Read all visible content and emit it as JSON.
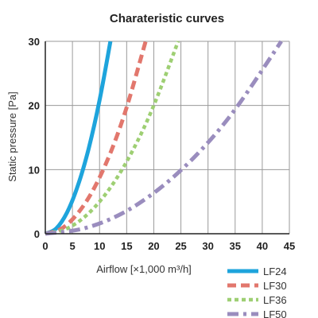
{
  "chart_data": {
    "type": "line",
    "title": "Charateristic curves",
    "xlabel": "Airflow [×1,000 m³/h]",
    "ylabel": "Static pressure  [Pa]",
    "xlim": [
      0,
      45
    ],
    "ylim": [
      0,
      30
    ],
    "x_ticks": [
      "0",
      "5",
      "10",
      "15",
      "20",
      "25",
      "30",
      "35",
      "40",
      "45"
    ],
    "y_ticks": [
      "0",
      "10",
      "20",
      "30"
    ],
    "grid": true,
    "legend_position": "bottom-right",
    "series": [
      {
        "name": "LF24",
        "color": "#1ea4dc",
        "style": "solid",
        "x": [
          0,
          2,
          4,
          6,
          8,
          10,
          12
        ],
        "y": [
          0,
          0.8,
          3.3,
          7.5,
          13.3,
          20.8,
          30
        ]
      },
      {
        "name": "LF30",
        "color": "#e2776d",
        "style": "dashed",
        "x": [
          0,
          3,
          6,
          9,
          12,
          15,
          18.5
        ],
        "y": [
          0,
          0.8,
          3.2,
          7.1,
          12.6,
          19.7,
          30
        ]
      },
      {
        "name": "LF36",
        "color": "#9ecf73",
        "style": "dotted",
        "x": [
          0,
          4,
          8,
          12,
          16,
          20,
          24.5
        ],
        "y": [
          0,
          0.8,
          3.2,
          7.2,
          12.8,
          20,
          30
        ]
      },
      {
        "name": "LF50",
        "color": "#9a8dbe",
        "style": "dashdot",
        "x": [
          0,
          7,
          14,
          21,
          28,
          35,
          43.5
        ],
        "y": [
          0,
          0.8,
          3.1,
          7,
          12.4,
          19.4,
          30
        ]
      }
    ]
  }
}
